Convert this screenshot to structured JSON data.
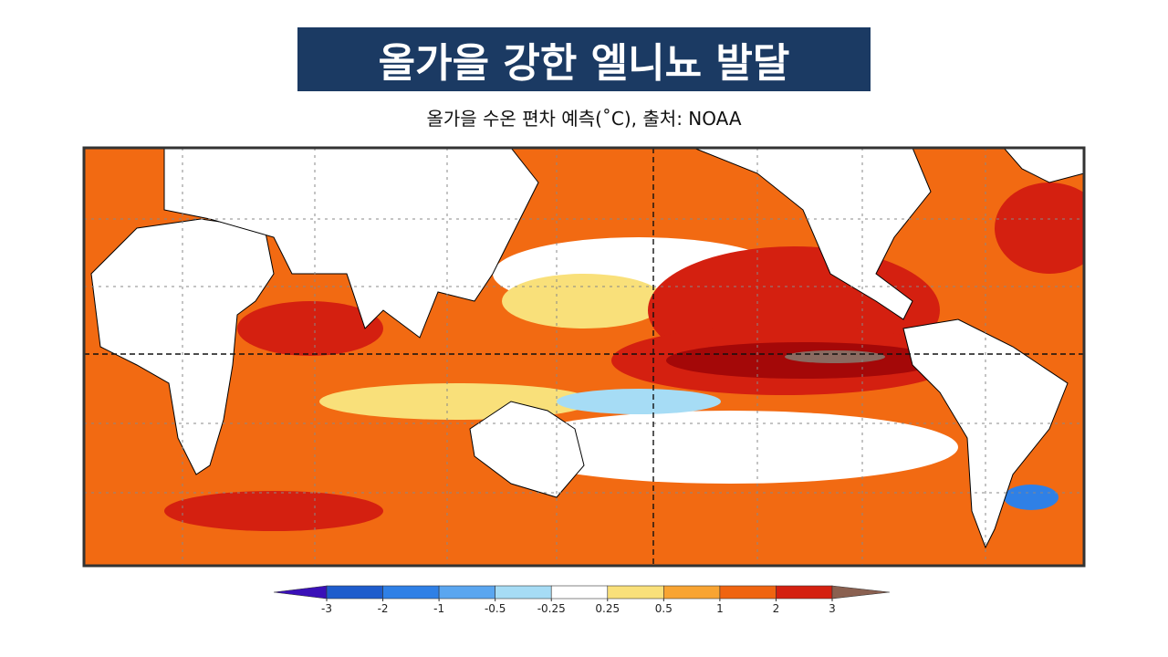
{
  "header": {
    "title": "올가을 강한 엘니뇨 발달",
    "subtitle": "올가을 수온 편차 예측(˚C), 출처: NOAA"
  },
  "colorbar": {
    "ticks": [
      -3,
      -2,
      -1,
      -0.5,
      -0.25,
      0.25,
      0.5,
      1,
      2,
      3
    ],
    "colors": [
      "#3a10b8",
      "#1e5ccc",
      "#2f80e6",
      "#5aa6f0",
      "#a6dcf5",
      "#ffffff",
      "#f9e07a",
      "#f8a432",
      "#f06410",
      "#d42010",
      "#a40808",
      "#8a6050"
    ]
  }
}
